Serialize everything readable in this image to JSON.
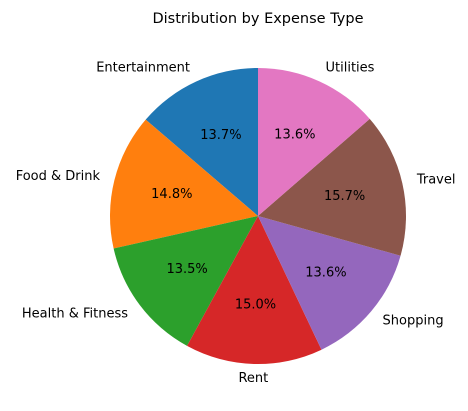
{
  "chart_data": {
    "type": "pie",
    "title": "Distribution by Expense Type",
    "start_angle_deg": 90,
    "direction": "counterclockwise",
    "slices": [
      {
        "label": "Entertainment",
        "value": 13.7,
        "pct_label": "13.7%",
        "color": "#1f77b4"
      },
      {
        "label": "Food & Drink",
        "value": 14.8,
        "pct_label": "14.8%",
        "color": "#ff7f0e"
      },
      {
        "label": "Health & Fitness",
        "value": 13.5,
        "pct_label": "13.5%",
        "color": "#2ca02c"
      },
      {
        "label": "Rent",
        "value": 15.0,
        "pct_label": "15.0%",
        "color": "#d62728"
      },
      {
        "label": "Shopping",
        "value": 13.6,
        "pct_label": "13.6%",
        "color": "#9467bd"
      },
      {
        "label": "Travel",
        "value": 15.7,
        "pct_label": "15.7%",
        "color": "#8c564b"
      },
      {
        "label": "Utilities",
        "value": 13.6,
        "pct_label": "13.6%",
        "color": "#e377c2"
      }
    ]
  }
}
